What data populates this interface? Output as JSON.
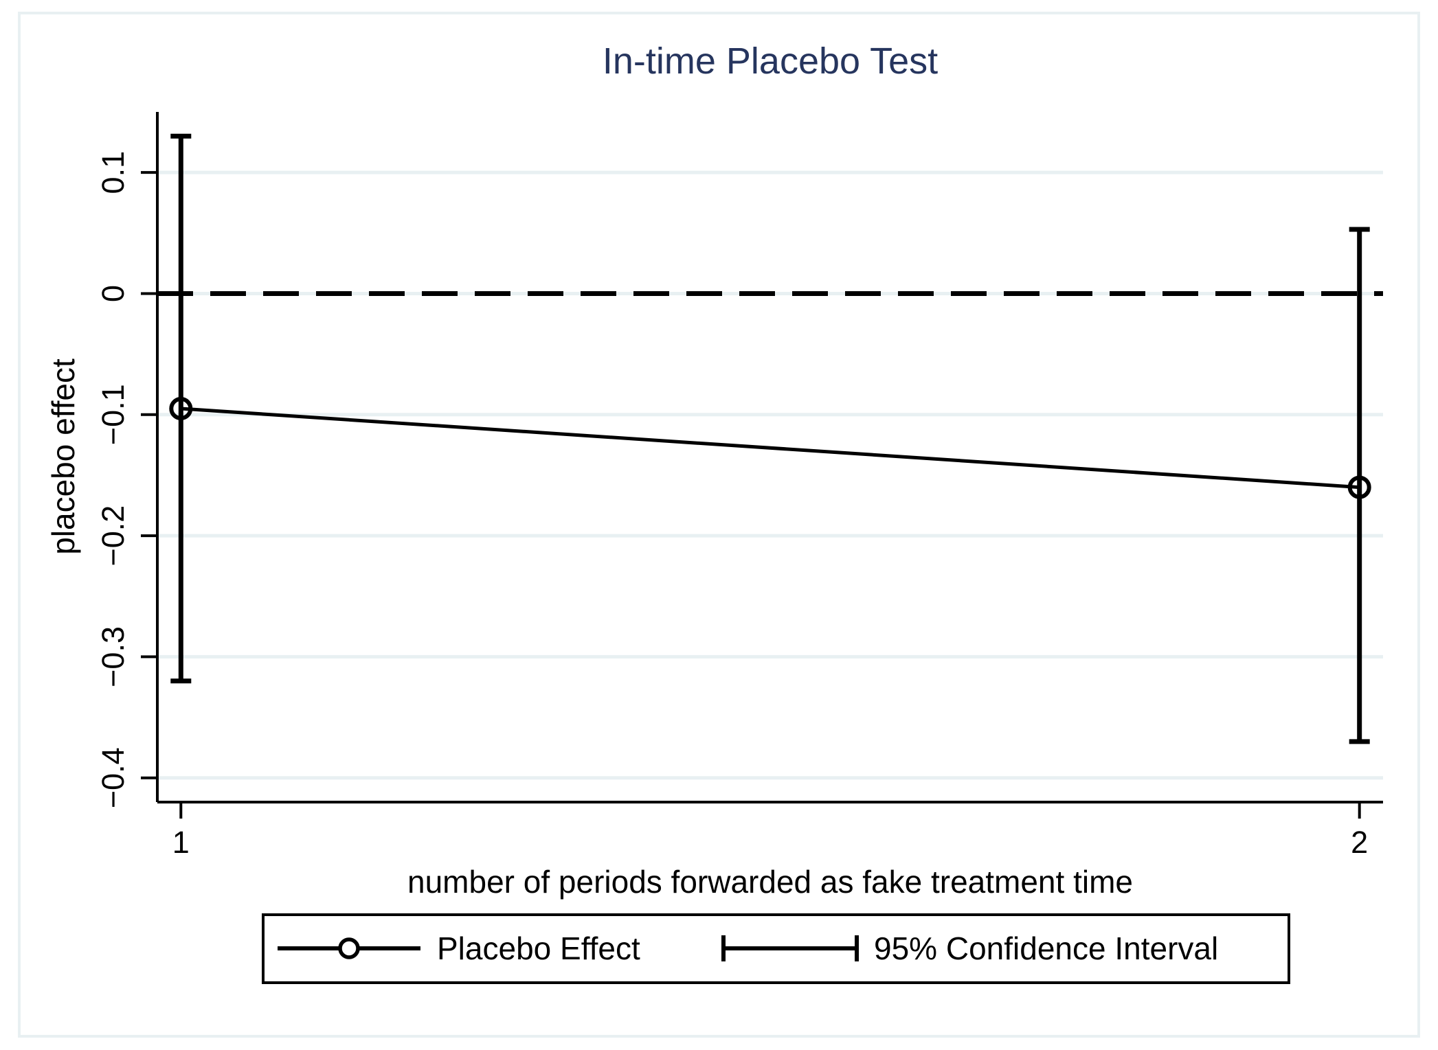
{
  "chart_data": {
    "type": "line",
    "title": "In-time Placebo Test",
    "xlabel": "number of periods forwarded as fake treatment time",
    "ylabel": "placebo effect",
    "x": [
      1,
      2
    ],
    "series": [
      {
        "name": "Placebo Effect",
        "style": "solid line with open circle markers",
        "values": [
          -0.095,
          -0.16
        ]
      },
      {
        "name": "95% Confidence Interval",
        "style": "capped vertical error bars",
        "high": [
          0.13,
          0.053
        ],
        "low": [
          -0.32,
          -0.37
        ]
      }
    ],
    "reference_line": {
      "y": 0,
      "style": "dashed"
    },
    "x_ticks": [
      {
        "value": 1,
        "label": "1"
      },
      {
        "value": 2,
        "label": "2"
      }
    ],
    "y_ticks": [
      {
        "value": 0.1,
        "label": "0.1"
      },
      {
        "value": 0,
        "label": "0"
      },
      {
        "value": -0.1,
        "label": "−0.1"
      },
      {
        "value": -0.2,
        "label": "−0.2"
      },
      {
        "value": -0.3,
        "label": "−0.3"
      },
      {
        "value": -0.4,
        "label": "−0.4"
      }
    ],
    "xlim": [
      0.98,
      2.02
    ],
    "ylim": [
      -0.42,
      0.15
    ],
    "grid": true,
    "legend_position": "bottom"
  },
  "legend": {
    "entries": [
      {
        "label": "Placebo Effect"
      },
      {
        "label": "95% Confidence Interval"
      }
    ]
  },
  "colors": {
    "title": "#26355e",
    "gridline": "#e8f0f2",
    "frame": "#e8f0f2",
    "series": "#000000",
    "background": "#ffffff"
  }
}
